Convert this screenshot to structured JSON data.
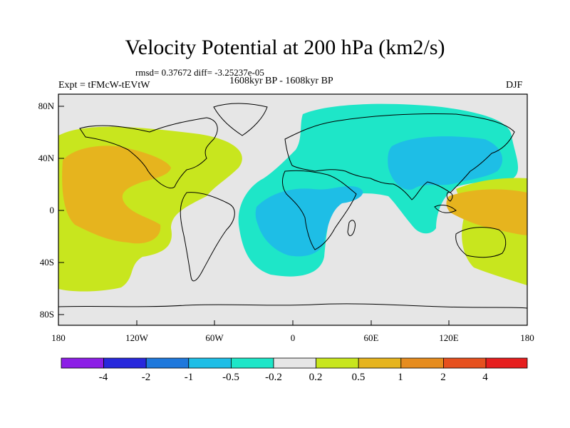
{
  "title": "Velocity Potential at 200 hPa (km2/s)",
  "stats": "rmsd= 0.37672 diff= -3.25237e-05",
  "expt_label": "Expt = tFMcW-tEVtW",
  "period": "1608kyr BP - 1608kyr BP",
  "season": "DJF",
  "axes": {
    "lat_ticks": [
      "80N",
      "40N",
      "0",
      "40S",
      "80S"
    ],
    "lon_ticks": [
      "180",
      "120W",
      "60W",
      "0",
      "60E",
      "120E",
      "180"
    ]
  },
  "colorbar": {
    "labels": [
      "-4",
      "-2",
      "-1",
      "-0.5",
      "-0.2",
      "0.2",
      "0.5",
      "1",
      "2",
      "4"
    ],
    "colors": [
      "#8c1ee6",
      "#2828dc",
      "#1e78dc",
      "#1ebee6",
      "#1ee6c8",
      "#e6e6e6",
      "#c8e61e",
      "#e6b41e",
      "#e68c1e",
      "#e6501e",
      "#e61e1e"
    ]
  },
  "colors": {
    "ocean_bg": "#e6e6e6",
    "green_yellow": "#c8e61e",
    "orange": "#e6b41e",
    "dark_orange": "#e68c1e",
    "cyan": "#1ee6c8",
    "blue": "#1ebee6"
  }
}
